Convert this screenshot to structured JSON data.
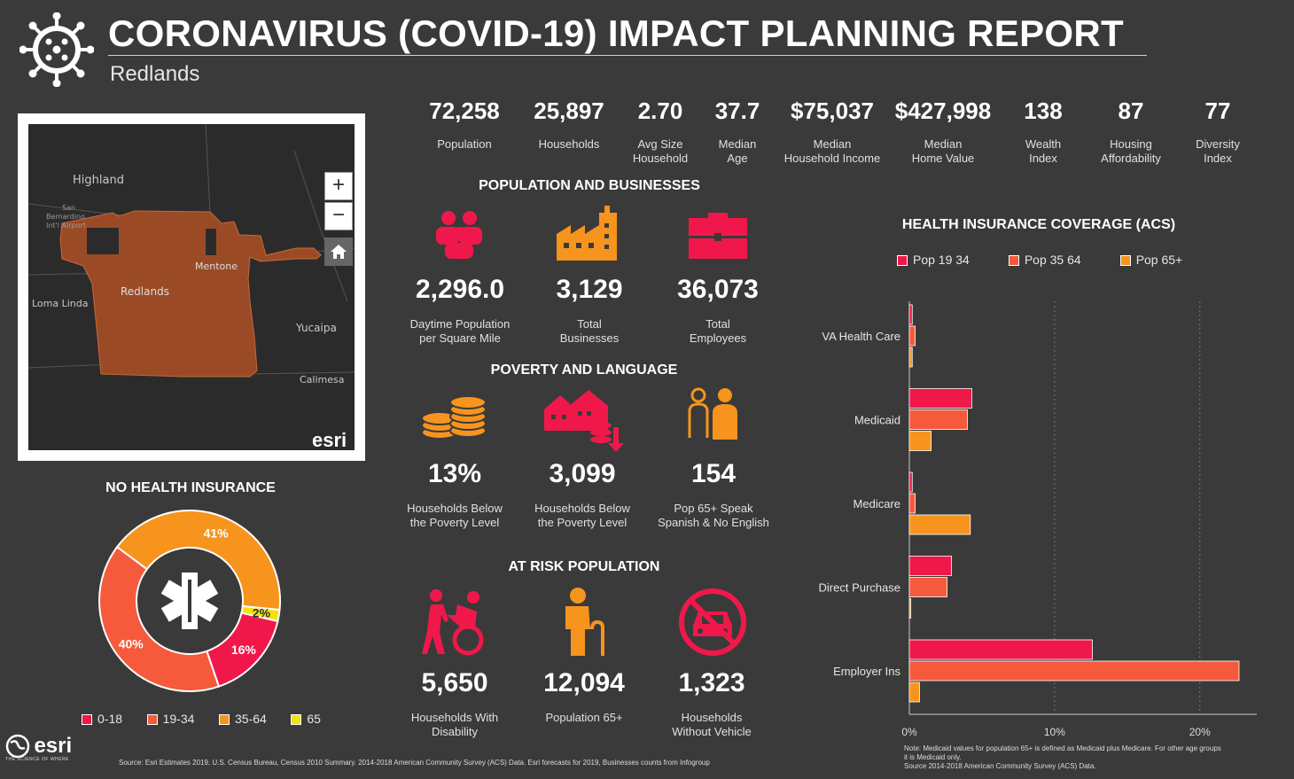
{
  "header": {
    "title": "CORONAVIRUS (COVID-19) IMPACT PLANNING REPORT",
    "location": "Redlands"
  },
  "stats": [
    {
      "value": "72,258",
      "label1": "Population",
      "label2": ""
    },
    {
      "value": "25,897",
      "label1": "Households",
      "label2": ""
    },
    {
      "value": "2.70",
      "label1": "Avg Size",
      "label2": "Household"
    },
    {
      "value": "37.7",
      "label1": "Median",
      "label2": "Age"
    },
    {
      "value": "$75,037",
      "label1": "Median",
      "label2": "Household Income"
    },
    {
      "value": "$427,998",
      "label1": "Median",
      "label2": "Home Value"
    },
    {
      "value": "138",
      "label1": "Wealth",
      "label2": "Index"
    },
    {
      "value": "87",
      "label1": "Housing",
      "label2": "Affordability"
    },
    {
      "value": "77",
      "label1": "Diversity",
      "label2": "Index"
    }
  ],
  "map": {
    "labels": {
      "highland": "Highland",
      "airport1": "San",
      "airport2": "Bernardino",
      "airport3": "Int'l Airport",
      "mentone": "Mentone",
      "redlands": "Redlands",
      "loma_linda": "Loma Linda",
      "yucaipa": "Yucaipa",
      "calimesa": "Calimesa"
    },
    "zoom_in": "+",
    "zoom_out": "−",
    "logo": "esri"
  },
  "pop_biz": {
    "title": "POPULATION AND BUSINESSES",
    "items": [
      {
        "value": "2,296.0",
        "label1": "Daytime Population",
        "label2": "per Square Mile"
      },
      {
        "value": "3,129",
        "label1": "Total",
        "label2": "Businesses"
      },
      {
        "value": "36,073",
        "label1": "Total",
        "label2": "Employees"
      }
    ]
  },
  "poverty": {
    "title": "POVERTY AND LANGUAGE",
    "items": [
      {
        "value": "13%",
        "label1": "Households Below",
        "label2": "the Poverty Level"
      },
      {
        "value": "3,099",
        "label1": "Households Below",
        "label2": "the Poverty Level"
      },
      {
        "value": "154",
        "label1": "Pop 65+ Speak",
        "label2": "Spanish & No English"
      }
    ]
  },
  "at_risk": {
    "title": "AT RISK POPULATION",
    "items": [
      {
        "value": "5,650",
        "label1": "Households With",
        "label2": "Disability"
      },
      {
        "value": "12,094",
        "label1": "Population 65+",
        "label2": ""
      },
      {
        "value": "1,323",
        "label1": "Households",
        "label2": "Without Vehicle"
      }
    ]
  },
  "donut": {
    "title": "NO HEALTH INSURANCE",
    "legend": [
      "0-18",
      "19-34",
      "35-64",
      "65"
    ]
  },
  "colors": {
    "pink": "#f0184a",
    "coral": "#f55a3c",
    "orange": "#f7941d",
    "yellow": "#f5e20a",
    "map_fill": "#9a4b25"
  },
  "chart_data": [
    {
      "type": "pie",
      "title": "NO HEALTH INSURANCE",
      "categories": [
        "0-18",
        "19-34",
        "35-64",
        "65"
      ],
      "values": [
        16,
        40,
        41,
        2
      ],
      "value_labels": [
        "16%",
        "40%",
        "41%",
        "2%"
      ]
    },
    {
      "type": "bar",
      "title": "HEALTH INSURANCE COVERAGE (ACS)",
      "orientation": "horizontal",
      "categories": [
        "VA Health Care",
        "Medicaid",
        "Medicare",
        "Direct Purchase",
        "Employer Ins"
      ],
      "series": [
        {
          "name": "Pop 19 34",
          "values": [
            0.2,
            4.3,
            0.2,
            2.9,
            12.6
          ]
        },
        {
          "name": "Pop 35 64",
          "values": [
            0.4,
            4.0,
            0.4,
            2.6,
            22.7
          ]
        },
        {
          "name": "Pop 65+",
          "values": [
            0.2,
            1.5,
            4.2,
            0.1,
            0.7
          ]
        }
      ],
      "xlim": [
        0,
        22.7
      ],
      "x_ticks": [
        "0%",
        "10%",
        "20%"
      ],
      "x_tick_values": [
        0,
        10,
        20
      ],
      "legend": "top",
      "grid": true
    }
  ],
  "notes": {
    "note1": "Note: Medicaid values for population 65+ is defined as Medicaid plus Medicare. For other age groups",
    "note2": "it is Medicaid only.",
    "note3": "Source 2014-2018 American Community Survey (ACS) Data."
  },
  "footer": {
    "source": "Source: Esri Estimates 2019, U.S. Census Bureau, Census 2010 Summary. 2014-2018 American Community Survey (ACS) Data. Esri forecasts for 2019, Businesses counts from Infogroup",
    "logo": "esri",
    "tagline": "THE SCIENCE OF WHERE"
  }
}
